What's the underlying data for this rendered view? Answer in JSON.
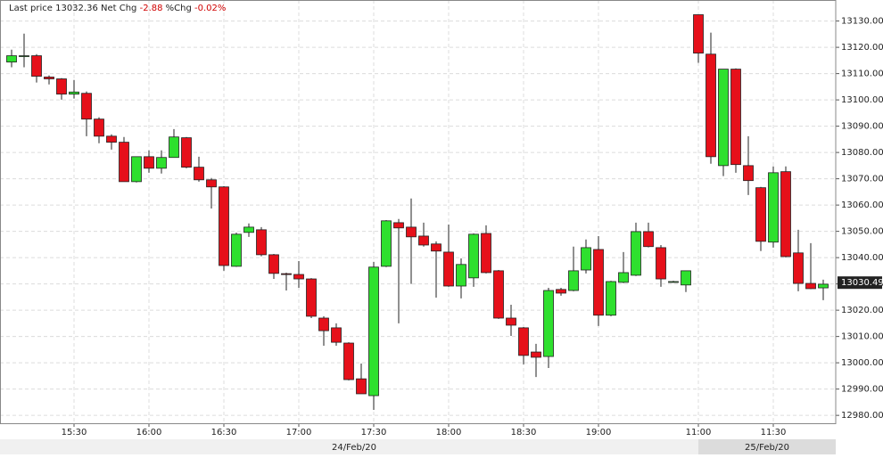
{
  "chart_data": {
    "type": "candlestick",
    "header": {
      "last_price_label": "Last price",
      "last_price": "13032.36",
      "net_chg_label": "Net Chg",
      "net_chg": "-2.88",
      "pct_chg_label": "%Chg",
      "pct_chg": "-0.02%"
    },
    "categories": [
      null,
      null,
      null,
      null,
      null,
      "15:30",
      null,
      null,
      null,
      null,
      null,
      "16:00",
      null,
      null,
      null,
      null,
      null,
      "16:30",
      null,
      null,
      null,
      null,
      null,
      "17:00",
      null,
      null,
      null,
      null,
      null,
      "17:30",
      null,
      null,
      null,
      null,
      null,
      "18:00",
      null,
      null,
      null,
      null,
      null,
      "18:30",
      null,
      null,
      null,
      null,
      null,
      "19:00",
      null,
      null,
      null,
      null,
      null,
      null,
      null,
      "11:00",
      null,
      null,
      null,
      null,
      null,
      "11:30",
      null,
      null,
      null,
      null
    ],
    "date_labels": [
      "24/Feb/20",
      "25/Feb/20"
    ],
    "open": [
      13114.4,
      13116.5,
      13116.8,
      13108.7,
      13108.0,
      13102.2,
      13102.5,
      13092.7,
      13086.2,
      13083.9,
      13068.9,
      13078.4,
      13074.0,
      13078.1,
      13085.6,
      13074.4,
      13069.6,
      13066.9,
      13036.7,
      13049.6,
      13050.6,
      13041.1,
      13033.9,
      13033.6,
      13031.9,
      13017.0,
      13013.3,
      13007.5,
      12993.9,
      12987.5,
      13036.7,
      13053.3,
      13051.6,
      13048.2,
      13045.2,
      13042.1,
      13029.2,
      13032.3,
      13049.2,
      13035.0,
      13017.0,
      13013.3,
      13004.1,
      13002.4,
      13027.9,
      13027.5,
      13035.3,
      13043.1,
      13018.1,
      13030.6,
      13033.3,
      13049.9,
      13043.8,
      13030.9,
      13029.6,
      13132.4,
      13117.4,
      13075.0,
      13111.7,
      13075.0,
      13066.6,
      13045.9,
      13072.7,
      13041.8,
      13030.2,
      13028.5
    ],
    "high": [
      13119.1,
      13125.2,
      13117.4,
      13109.3,
      13108.3,
      13107.6,
      13103.2,
      13093.4,
      13086.9,
      13085.9,
      13078.4,
      13080.8,
      13080.8,
      13088.9,
      13085.9,
      13078.4,
      13070.3,
      13067.2,
      13049.5,
      13053.0,
      13051.6,
      13041.4,
      13034.3,
      13038.7,
      13032.2,
      13017.7,
      13015.0,
      13007.8,
      12999.7,
      13038.4,
      13054.3,
      13054.7,
      13062.5,
      13053.3,
      13046.2,
      13052.6,
      13039.7,
      13049.2,
      13052.3,
      13035.3,
      13022.1,
      13013.6,
      13007.2,
      13028.5,
      13028.5,
      13044.2,
      13046.9,
      13048.2,
      13031.2,
      13042.1,
      13053.3,
      13053.3,
      13044.8,
      13031.2,
      13035.0,
      13132.4,
      13125.6,
      13111.7,
      13112.0,
      13086.2,
      13066.9,
      13074.7,
      13074.7,
      13050.6,
      13045.5,
      13031.6
    ],
    "low": [
      13112.4,
      13112.4,
      13106.6,
      13105.9,
      13100.1,
      13100.5,
      13086.2,
      13083.5,
      13081.1,
      13068.9,
      13068.6,
      13072.3,
      13072.0,
      13078.1,
      13074.0,
      13068.9,
      13058.7,
      13035.0,
      13036.5,
      13047.9,
      13040.5,
      13031.9,
      13027.5,
      13028.5,
      13017.0,
      13006.5,
      13006.5,
      12993.3,
      12988.2,
      12982.1,
      13036.4,
      13015.0,
      13030.0,
      13044.2,
      13024.8,
      13028.9,
      13024.5,
      13028.9,
      13034.0,
      13016.7,
      13010.2,
      12999.4,
      12994.6,
      12998.0,
      13025.5,
      13027.2,
      13034.0,
      13014.0,
      13017.7,
      13030.3,
      13033.0,
      13043.9,
      13028.9,
      13030.6,
      13026.9,
      13114.1,
      13075.7,
      13071.0,
      13072.3,
      13063.8,
      13042.5,
      13043.8,
      13040.1,
      13027.2,
      13028.0,
      13023.8
    ],
    "close": [
      13116.8,
      13116.8,
      13109.0,
      13108.0,
      13102.2,
      13103.0,
      13092.7,
      13086.2,
      13083.9,
      13068.9,
      13078.4,
      13074.0,
      13078.1,
      13085.9,
      13074.4,
      13069.6,
      13066.9,
      13037.0,
      13048.9,
      13051.6,
      13041.1,
      13034.0,
      13033.6,
      13031.9,
      13017.7,
      13012.2,
      13007.8,
      12993.6,
      12988.2,
      13036.4,
      13054.0,
      13051.3,
      13047.9,
      13044.8,
      13042.5,
      13029.2,
      13037.4,
      13048.9,
      13034.3,
      13017.0,
      13014.3,
      13002.8,
      13002.1,
      13027.5,
      13026.5,
      13035.0,
      13043.8,
      13018.1,
      13030.9,
      13034.3,
      13049.9,
      13044.2,
      13031.9,
      13030.9,
      13035.0,
      13117.8,
      13078.4,
      13111.7,
      13075.4,
      13069.3,
      13046.2,
      13072.3,
      13040.4,
      13030.2,
      13028.2,
      13029.9
    ],
    "up_color": "#2ee02e",
    "down_color": "#e6101a",
    "last_marker": 13030.49,
    "ylim": [
      12977,
      13138
    ],
    "yticks": [
      {
        "value": 12980,
        "label": "12980.00"
      },
      {
        "value": 12990,
        "label": "12990.00"
      },
      {
        "value": 13000,
        "label": "13000.00"
      },
      {
        "value": 13010,
        "label": "13010.00"
      },
      {
        "value": 13020,
        "label": "13020.00"
      },
      {
        "value": 13030,
        "label": "13030.00"
      },
      {
        "value": 13040,
        "label": "13040.00"
      },
      {
        "value": 13050,
        "label": "13050.00"
      },
      {
        "value": 13060,
        "label": "13060.00"
      },
      {
        "value": 13070,
        "label": "13070.00"
      },
      {
        "value": 13080,
        "label": "13080.00"
      },
      {
        "value": 13090,
        "label": "13090.00"
      },
      {
        "value": 13100,
        "label": "13100.00"
      },
      {
        "value": 13110,
        "label": "13110.00"
      },
      {
        "value": 13120,
        "label": "13120.00"
      },
      {
        "value": 13130,
        "label": "13130.00"
      }
    ],
    "grid": true
  }
}
